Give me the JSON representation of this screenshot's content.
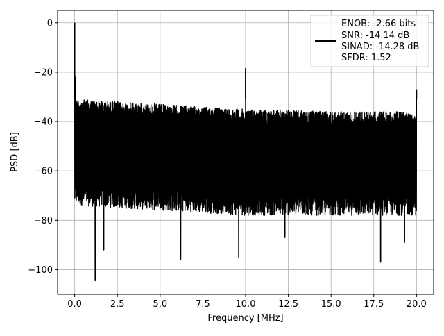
{
  "chart_data": {
    "type": "line",
    "title": "",
    "xlabel": "Frequency [MHz]",
    "ylabel": "PSD [dB]",
    "xlim": [
      -1.0,
      21.0
    ],
    "ylim": [
      -110,
      5
    ],
    "x_ticks": [
      {
        "value": 0.0,
        "label": "0.0"
      },
      {
        "value": 2.5,
        "label": "2.5"
      },
      {
        "value": 5.0,
        "label": "5.0"
      },
      {
        "value": 7.5,
        "label": "7.5"
      },
      {
        "value": 10.0,
        "label": "10.0"
      },
      {
        "value": 12.5,
        "label": "12.5"
      },
      {
        "value": 15.0,
        "label": "15.0"
      },
      {
        "value": 17.5,
        "label": "17.5"
      },
      {
        "value": 20.0,
        "label": "20.0"
      }
    ],
    "y_ticks": [
      {
        "value": 0,
        "label": "0"
      },
      {
        "value": -20,
        "label": "−20"
      },
      {
        "value": -40,
        "label": "−40"
      },
      {
        "value": -60,
        "label": "−60"
      },
      {
        "value": -80,
        "label": "−80"
      },
      {
        "value": -100,
        "label": "−100"
      }
    ],
    "grid": true,
    "legend_position": "top-right",
    "legend": {
      "lines": [
        "ENOB: -2.66 bits",
        "SNR: -14.14 dB",
        "SINAD: -14.28 dB",
        "SFDR: 1.52"
      ]
    },
    "series": [
      {
        "color": "#000000",
        "noise_floor": {
          "upper_envelope": [
            [
              0.1,
              -31
            ],
            [
              5,
              -33
            ],
            [
              10,
              -35
            ],
            [
              15,
              -36
            ],
            [
              20,
              -36
            ]
          ],
          "lower_envelope": [
            [
              0.1,
              -74
            ],
            [
              5,
              -76
            ],
            [
              10,
              -78
            ],
            [
              15,
              -78
            ],
            [
              20,
              -78
            ]
          ],
          "x_range": [
            0.0,
            20.0
          ]
        },
        "peaks": [
          {
            "x": 0.0,
            "y": 0.0
          },
          {
            "x": 0.05,
            "y": -22
          },
          {
            "x": 10.0,
            "y": -18.5
          },
          {
            "x": 20.0,
            "y": -27
          }
        ],
        "dips": [
          {
            "x": 1.2,
            "y": -104.5
          },
          {
            "x": 1.7,
            "y": -92
          },
          {
            "x": 6.2,
            "y": -96
          },
          {
            "x": 9.6,
            "y": -95
          },
          {
            "x": 12.3,
            "y": -87
          },
          {
            "x": 17.9,
            "y": -97
          },
          {
            "x": 19.3,
            "y": -89
          }
        ]
      }
    ],
    "colors": {
      "line": "#000000",
      "grid": "#b0b0b0",
      "axes": "#000000",
      "legend_border": "#cccccc"
    }
  }
}
